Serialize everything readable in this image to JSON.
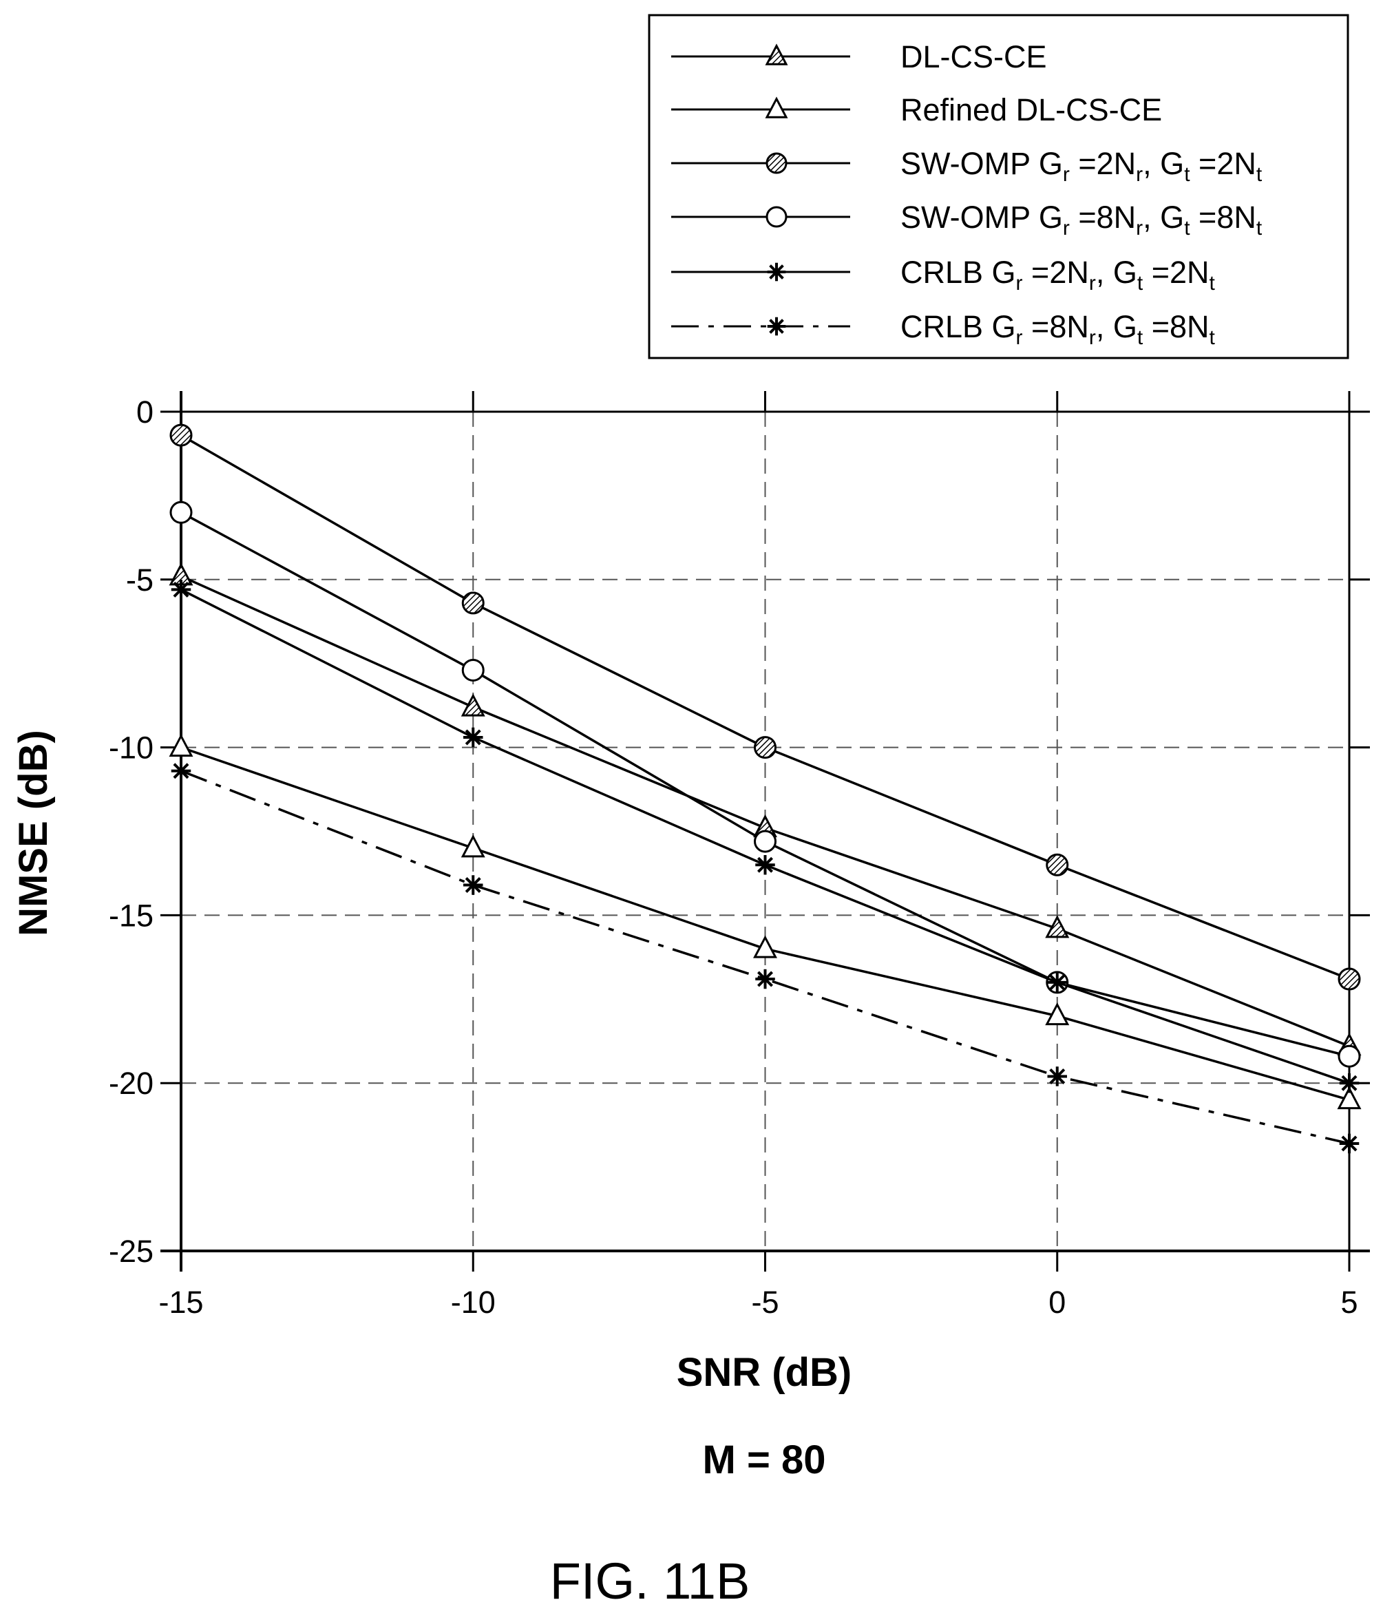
{
  "chart_data": {
    "type": "line",
    "xlabel": "SNR (dB)",
    "ylabel": "NMSE (dB)",
    "subtitle": "M = 80",
    "figure_label": "FIG. 11B",
    "xlim": [
      -15,
      5
    ],
    "ylim": [
      -25,
      0
    ],
    "xticks": [
      -15,
      -10,
      -5,
      0,
      5
    ],
    "yticks": [
      0,
      -5,
      -10,
      -15,
      -20,
      -25
    ],
    "xtick_labels": [
      "-15",
      "-10",
      "-5",
      "0",
      "5"
    ],
    "ytick_labels": [
      "0",
      "-5",
      "-10",
      "-15",
      "-20",
      "-25"
    ],
    "grid": "dashed",
    "legend_position": "top-right, above plot",
    "x": [
      -15,
      -10,
      -5,
      0,
      5
    ],
    "series": [
      {
        "name": "DL-CS-CE",
        "marker": "triangle-hatched",
        "line": "solid",
        "legend": {
          "main": "DL-CS-CE"
        },
        "values": [
          -4.9,
          -8.8,
          -12.4,
          -15.4,
          -18.9
        ]
      },
      {
        "name": "Refined DL-CS-CE",
        "marker": "triangle-open",
        "line": "solid",
        "legend": {
          "main": "Refined DL-CS-CE"
        },
        "values": [
          -10.0,
          -13.0,
          -16.0,
          -18.0,
          -20.5
        ]
      },
      {
        "name": "SW-OMP Gr =2Nr, Gt =2Nt",
        "marker": "circle-hatched",
        "line": "solid",
        "legend": {
          "main": "SW-OMP G",
          "sub1": "r",
          "mid": " =2N",
          "sub2": "r",
          "mid2": ", G",
          "sub3": "t",
          "mid3": " =2N",
          "sub4": "t"
        },
        "values": [
          -0.7,
          -5.7,
          -10.0,
          -13.5,
          -16.9
        ]
      },
      {
        "name": "SW-OMP Gr =8Nr, Gt =8Nt",
        "marker": "circle-open",
        "line": "solid",
        "legend": {
          "main": "SW-OMP G",
          "sub1": "r",
          "mid": " =8N",
          "sub2": "r",
          "mid2": ", G",
          "sub3": "t",
          "mid3": " =8N",
          "sub4": "t"
        },
        "values": [
          -3.0,
          -7.7,
          -12.8,
          -17.0,
          -19.2
        ]
      },
      {
        "name": "CRLB Gr =2Nr, Gt =2Nt",
        "marker": "asterisk",
        "line": "solid",
        "legend": {
          "main": "CRLB G",
          "sub1": "r",
          "mid": " =2N",
          "sub2": "r",
          "mid2": ", G",
          "sub3": "t",
          "mid3": " =2N",
          "sub4": "t"
        },
        "values": [
          -5.3,
          -9.7,
          -13.5,
          -17.0,
          -20.0
        ]
      },
      {
        "name": "CRLB Gr =8Nr, Gt =8Nt",
        "marker": "asterisk",
        "line": "dash-dot",
        "legend": {
          "main": "CRLB G",
          "sub1": "r",
          "mid": " =8N",
          "sub2": "r",
          "mid2": ", G",
          "sub3": "t",
          "mid3": " =8N",
          "sub4": "t"
        },
        "values": [
          -10.7,
          -14.1,
          -16.9,
          -19.8,
          -21.8
        ]
      }
    ]
  }
}
